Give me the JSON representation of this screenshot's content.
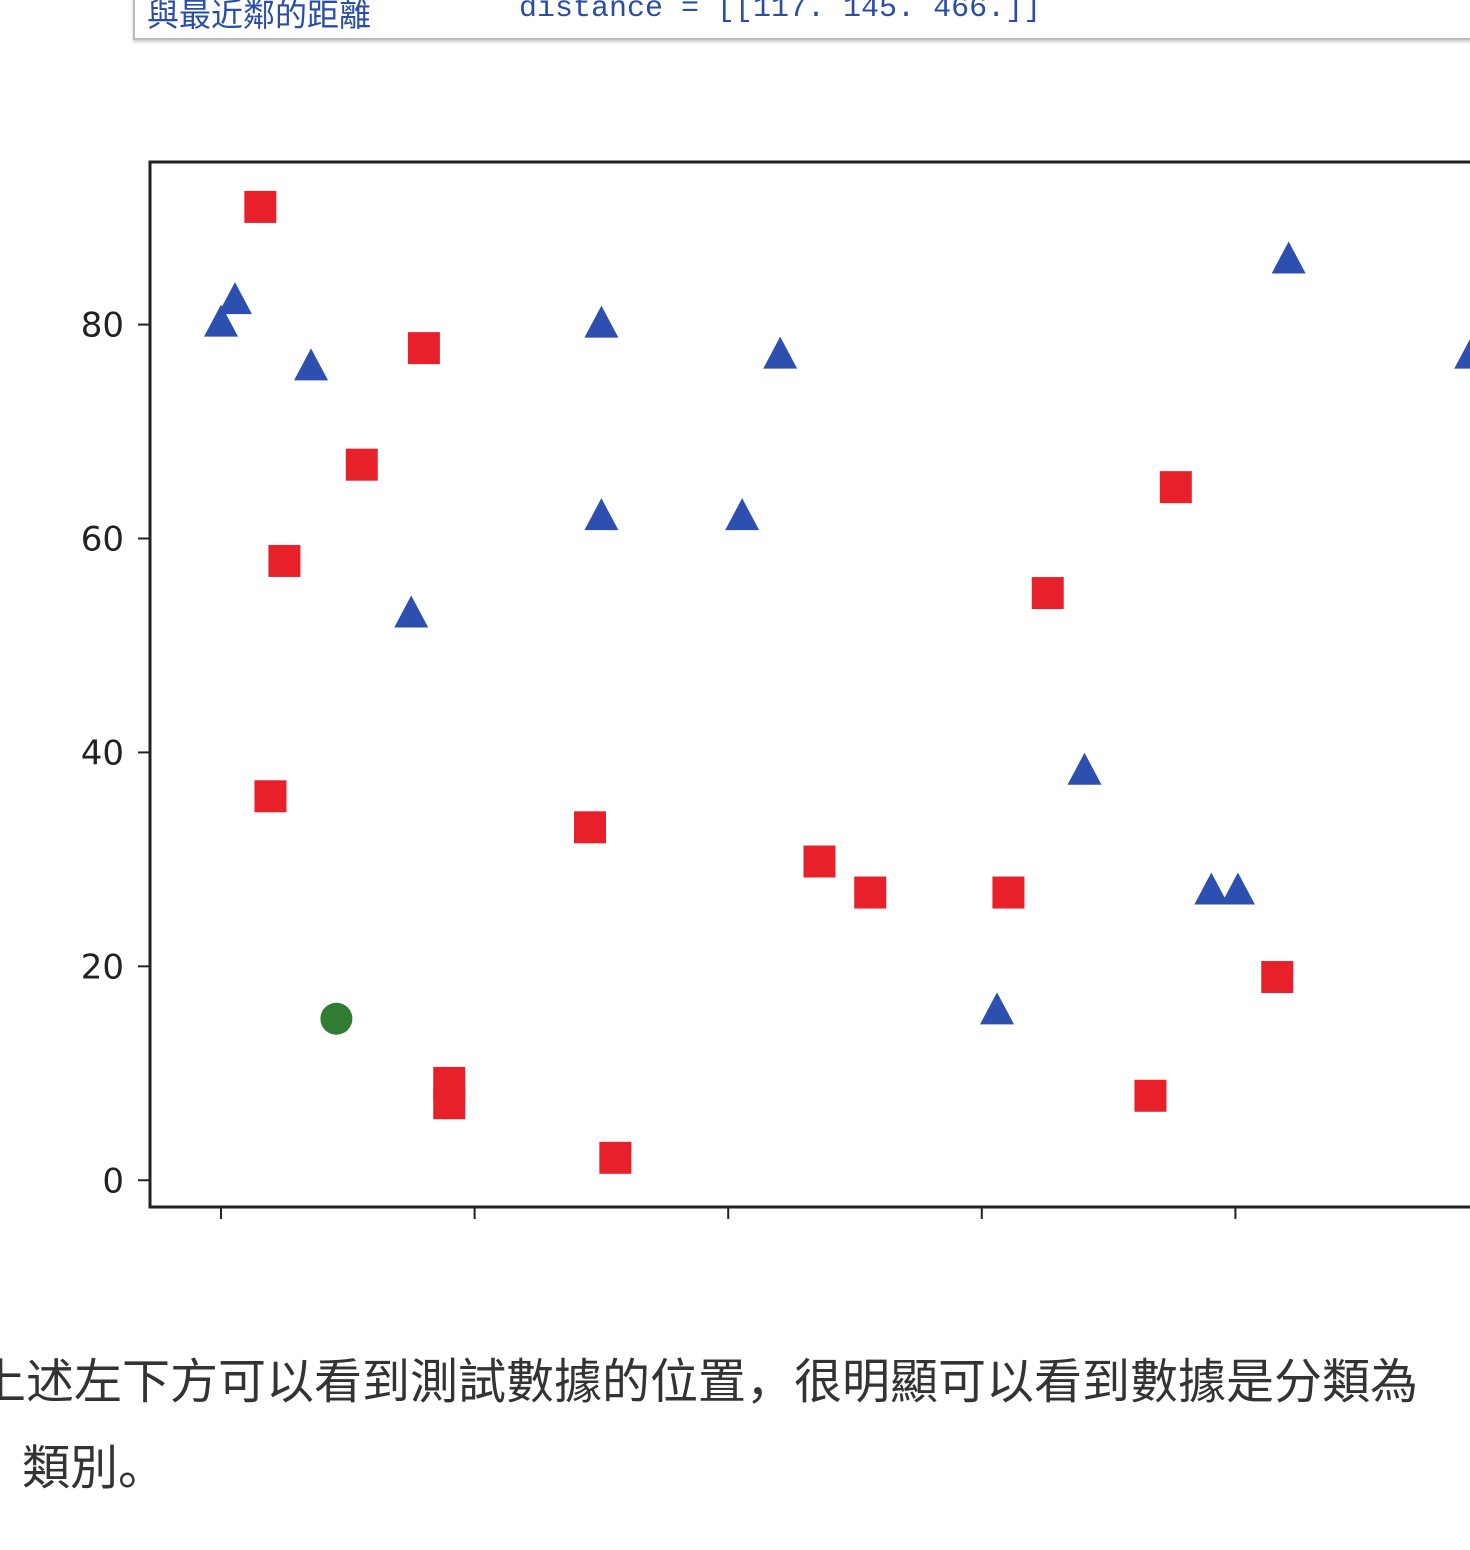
{
  "code_output": {
    "label": "與最近鄰的距離",
    "text": "distance = [[117. 145. 466.]]"
  },
  "chart_data": {
    "type": "scatter",
    "xlim": [
      -5.6,
      105.6
    ],
    "ylim": [
      -2.5,
      95.2
    ],
    "xticks": [
      0,
      20,
      40,
      60,
      80,
      100
    ],
    "yticks": [
      0,
      20,
      40,
      60,
      80
    ],
    "series": [
      {
        "color": "#e8202a",
        "marker": "square",
        "x": [
          3.1,
          16.0,
          11.1,
          5.0,
          3.9,
          29.1,
          18.0,
          18.0,
          31.1,
          47.2,
          51.2,
          62.1,
          65.2,
          75.3,
          83.3,
          73.3
        ],
        "values": [
          91.0,
          77.8,
          66.9,
          57.9,
          35.9,
          33.0,
          9.1,
          7.2,
          2.1,
          29.8,
          26.9,
          26.9,
          54.9,
          64.8,
          19.0,
          7.9
        ]
      },
      {
        "color": "#2d4fb0",
        "marker": "triangle",
        "x": [
          0.0,
          1.1,
          7.1,
          15.0,
          30.0,
          30.0,
          41.1,
          44.1,
          84.2,
          68.1,
          78.1,
          80.2,
          61.2,
          98.6
        ],
        "values": [
          80.0,
          82.1,
          75.9,
          52.8,
          79.9,
          61.9,
          61.9,
          77.0,
          85.9,
          38.1,
          26.9,
          26.9,
          15.7,
          77.0
        ]
      },
      {
        "color": "#2e7d32",
        "marker": "circle",
        "x": [
          9.1
        ],
        "values": [
          15.1
        ]
      }
    ]
  },
  "paragraph": [
    "上述左下方可以看到測試數據的位置，很明顯可以看到數據是分類為",
    "類別。"
  ]
}
